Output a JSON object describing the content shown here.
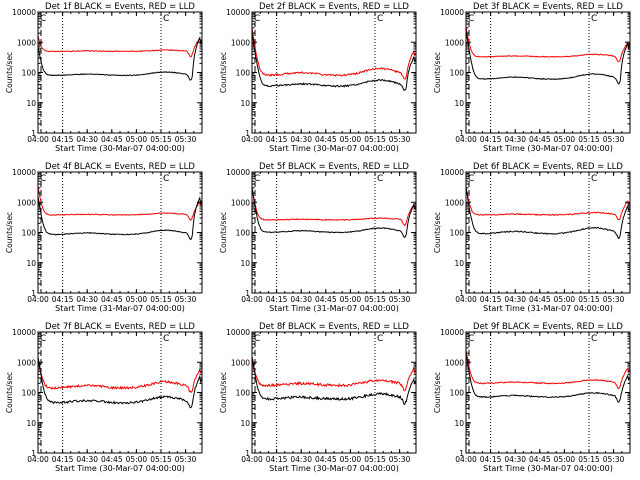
{
  "chart_data": {
    "type": "line",
    "ylabel": "Counts/sec",
    "yscale": "log",
    "ylim": [
      1,
      10000
    ],
    "ytick_values": [
      1,
      10,
      100,
      1000,
      10000
    ],
    "ytick_labels": [
      "1",
      "10",
      "100",
      "1000",
      "10000"
    ],
    "xlim": [
      "04:00",
      "05:40"
    ],
    "xtick_labels": [
      "04:00",
      "04:15",
      "04:30",
      "04:45",
      "05:00",
      "05:15",
      "05:30"
    ],
    "xlabel": "Start Time (30-Mar-07 04:00:00)",
    "xlabel_mid_row": "Start Time (31-Mar-07 04:00:00)",
    "vertical_lines": [
      "04:00",
      "04:15",
      "05:15"
    ],
    "corner_mark": "C",
    "series_colors": {
      "events": "#000000",
      "lld": "#ff0000"
    },
    "panels": [
      {
        "title": "Det 1f BLACK = Events, RED = LLD",
        "events_level": 80,
        "lld_level": 500,
        "events_hump": 1.3,
        "lld_hump": 1.1,
        "start_spike_events": 700,
        "start_spike_lld": 1200,
        "end_spike_events": 1800,
        "end_spike_lld": 1200,
        "noise": 0.03
      },
      {
        "title": "Det 2f BLACK = Events, RED = LLD",
        "events_level": 35,
        "lld_level": 80,
        "events_hump": 1.6,
        "lld_hump": 1.7,
        "start_spike_events": 2000,
        "start_spike_lld": 3000,
        "end_spike_events": 400,
        "end_spike_lld": 600,
        "noise": 0.06
      },
      {
        "title": "Det 3f BLACK = Events, RED = LLD",
        "events_level": 60,
        "lld_level": 330,
        "events_hump": 1.5,
        "lld_hump": 1.2,
        "start_spike_events": 2500,
        "start_spike_lld": 3000,
        "end_spike_events": 1200,
        "end_spike_lld": 900,
        "noise": 0.03
      },
      {
        "title": "Det 4f BLACK = Events, RED = LLD",
        "events_level": 85,
        "lld_level": 380,
        "events_hump": 1.4,
        "lld_hump": 1.15,
        "start_spike_events": 1500,
        "start_spike_lld": 3000,
        "end_spike_events": 1800,
        "end_spike_lld": 900,
        "noise": 0.03
      },
      {
        "title": "Det 5f BLACK = Events, RED = LLD",
        "events_level": 100,
        "lld_level": 260,
        "events_hump": 1.4,
        "lld_hump": 1.15,
        "start_spike_events": 3000,
        "start_spike_lld": 3000,
        "end_spike_events": 1000,
        "end_spike_lld": 800,
        "noise": 0.035
      },
      {
        "title": "Det 6f BLACK = Events, RED = LLD",
        "events_level": 90,
        "lld_level": 380,
        "events_hump": 1.6,
        "lld_hump": 1.2,
        "start_spike_events": 3000,
        "start_spike_lld": 3000,
        "end_spike_events": 900,
        "end_spike_lld": 1000,
        "noise": 0.04
      },
      {
        "title": "Det 7f BLACK = Events, RED = LLD",
        "events_level": 45,
        "lld_level": 140,
        "events_hump": 1.6,
        "lld_hump": 1.6,
        "start_spike_events": 1500,
        "start_spike_lld": 1500,
        "end_spike_events": 400,
        "end_spike_lld": 600,
        "noise": 0.08
      },
      {
        "title": "Det 8f BLACK = Events, RED = LLD",
        "events_level": 60,
        "lld_level": 170,
        "events_hump": 1.5,
        "lld_hump": 1.5,
        "start_spike_events": 1500,
        "start_spike_lld": 1500,
        "end_spike_events": 300,
        "end_spike_lld": 600,
        "noise": 0.09
      },
      {
        "title": "Det 9f BLACK = Events, RED = LLD",
        "events_level": 70,
        "lld_level": 200,
        "events_hump": 1.4,
        "lld_hump": 1.3,
        "start_spike_events": 2000,
        "start_spike_lld": 2500,
        "end_spike_events": 400,
        "end_spike_lld": 600,
        "noise": 0.04
      }
    ]
  }
}
